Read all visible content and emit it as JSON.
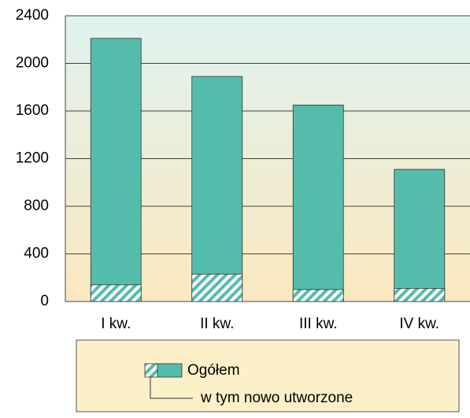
{
  "chart_data": {
    "type": "bar",
    "categories": [
      "I kw.",
      "II kw.",
      "III kw.",
      "IV kw."
    ],
    "series": [
      {
        "name": "Ogółem",
        "color": "#55bcab",
        "values": [
          2210,
          1890,
          1650,
          1110
        ]
      },
      {
        "name": "w tym nowo utworzone",
        "color": "#55bcab",
        "pattern": "hatch",
        "values": [
          140,
          230,
          100,
          110
        ]
      }
    ],
    "ylim": [
      0,
      2400
    ],
    "yticks": [
      0,
      400,
      800,
      1200,
      1600,
      2000,
      2400
    ],
    "grid": true
  }
}
